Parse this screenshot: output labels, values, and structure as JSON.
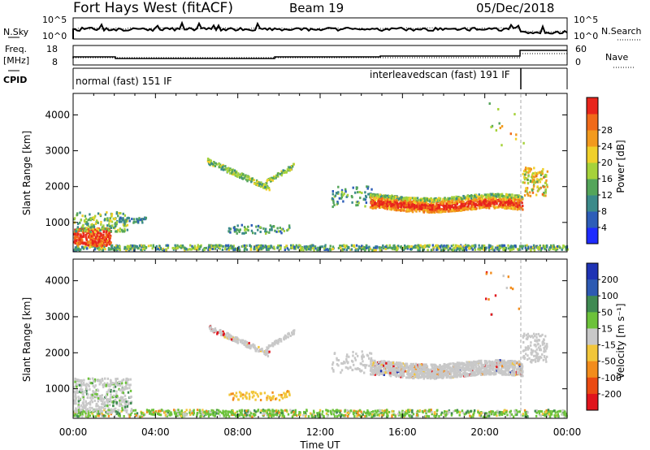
{
  "header": {
    "station": "Fort Hays West (fitACF)",
    "beam": "Beam 19",
    "date": "05/Dec/2018"
  },
  "info_panels": {
    "nsky_label": "N.Sky",
    "nsky_ticks": [
      "10^5",
      "10^0"
    ],
    "nsearch_label": "N.Search",
    "nsearch_ticks": [
      "10^5",
      "10^0"
    ],
    "freq_label": "Freq.",
    "freq_unit": "[MHz]",
    "freq_ticks": [
      "18",
      "8"
    ],
    "nave_label": "Nave",
    "nave_ticks": [
      "60",
      "0"
    ],
    "cpid_label": "CPID",
    "cpid_modes": [
      "normal (fast) 151 IF",
      "interleavedscan (fast) 191 IF"
    ]
  },
  "chart_data": [
    {
      "type": "heatmap",
      "title": "",
      "ylabel": "Slant Range [km]",
      "ylim": [
        180,
        4600
      ],
      "yticks": [
        "1000",
        "2000",
        "3000",
        "4000"
      ],
      "colorbar_label": "Power [dB]",
      "colorbar_ticks": [
        "4",
        "8",
        "12",
        "16",
        "20",
        "24",
        "28"
      ],
      "colorbar_colors": [
        "#1e2bff",
        "#2d5db8",
        "#3b8a8a",
        "#54a55a",
        "#a6d23a",
        "#f0d02a",
        "#f29a1e",
        "#f06a1a",
        "#e8251c"
      ]
    },
    {
      "type": "heatmap",
      "title": "",
      "ylabel": "Slant Range [km]",
      "ylim": [
        180,
        4600
      ],
      "yticks": [
        "1000",
        "2000",
        "3000",
        "4000"
      ],
      "colorbar_label": "Velocity [m s⁻¹]",
      "colorbar_ticks": [
        "200",
        "100",
        "50",
        "15",
        "-15",
        "-50",
        "-100",
        "-200"
      ],
      "colorbar_colors": [
        "#1f33b4",
        "#2d5ab2",
        "#3f8a52",
        "#6cc23a",
        "#c8c8c8",
        "#f2c63a",
        "#f28c1c",
        "#ea4a12",
        "#e0141c"
      ]
    }
  ],
  "xaxis": {
    "ticks": [
      "00:00",
      "04:00",
      "08:00",
      "12:00",
      "16:00",
      "20:00",
      "00:00"
    ],
    "label": "Time UT"
  }
}
